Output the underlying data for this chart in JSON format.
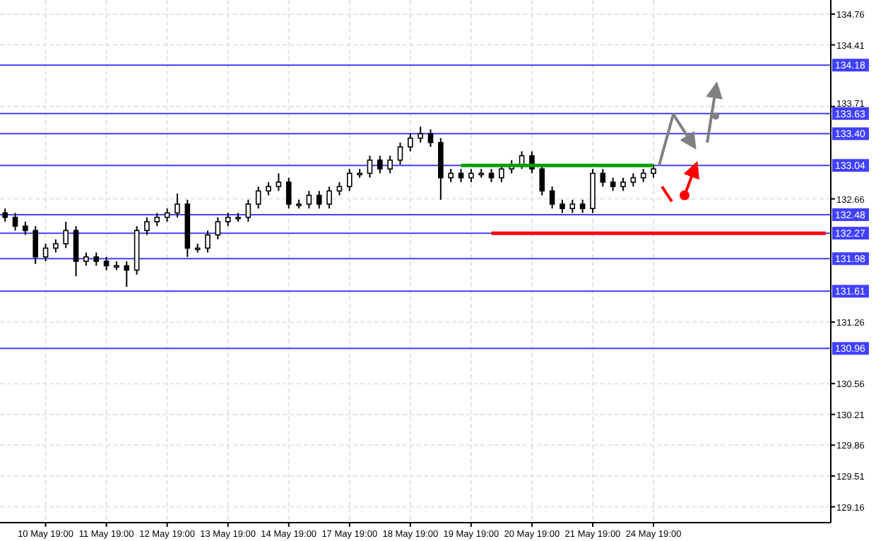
{
  "chart_data": {
    "type": "candlestick",
    "color": "#000000",
    "grid": true,
    "categories": [
      null,
      null,
      null,
      null,
      "10 May 19:00",
      null,
      null,
      null,
      null,
      null,
      "11 May 19:00",
      null,
      null,
      null,
      null,
      null,
      "12 May 19:00",
      null,
      null,
      null,
      null,
      null,
      "13 May 19:00",
      null,
      null,
      null,
      null,
      null,
      "14 May 19:00",
      null,
      null,
      null,
      null,
      null,
      "17 May 19:00",
      null,
      null,
      null,
      null,
      null,
      "18 May 19:00",
      null,
      null,
      null,
      null,
      null,
      "19 May 19:00",
      null,
      null,
      null,
      null,
      null,
      "20 May 19:00",
      null,
      null,
      null,
      null,
      null,
      "21 May 19:00",
      null,
      null,
      null,
      null,
      null,
      "24 May 19:00",
      null,
      null,
      null,
      null,
      null,
      null,
      null,
      null,
      null,
      null,
      null,
      null,
      null,
      null,
      null,
      null,
      null
    ],
    "ohlc": [
      [
        132.5,
        132.55,
        132.4,
        132.45
      ],
      [
        132.45,
        132.5,
        132.3,
        132.35
      ],
      [
        132.35,
        132.4,
        132.25,
        132.3
      ],
      [
        132.3,
        132.35,
        131.92,
        132.0
      ],
      [
        132.0,
        132.15,
        131.95,
        132.1
      ],
      [
        132.1,
        132.2,
        132.05,
        132.15
      ],
      [
        132.15,
        132.4,
        132.1,
        132.3
      ],
      [
        132.3,
        132.35,
        131.78,
        131.95
      ],
      [
        131.95,
        132.05,
        131.9,
        132.0
      ],
      [
        132.0,
        132.05,
        131.9,
        131.95
      ],
      [
        131.95,
        132.0,
        131.85,
        131.9
      ],
      [
        131.9,
        131.95,
        131.85,
        131.9
      ],
      [
        131.9,
        131.95,
        131.66,
        131.85
      ],
      [
        131.85,
        132.35,
        131.8,
        132.3
      ],
      [
        132.3,
        132.45,
        132.25,
        132.4
      ],
      [
        132.4,
        132.5,
        132.35,
        132.45
      ],
      [
        132.45,
        132.55,
        132.4,
        132.5
      ],
      [
        132.5,
        132.72,
        132.45,
        132.6
      ],
      [
        132.6,
        132.65,
        132.0,
        132.1
      ],
      [
        132.1,
        132.15,
        132.05,
        132.1
      ],
      [
        132.1,
        132.3,
        132.05,
        132.25
      ],
      [
        132.25,
        132.45,
        132.2,
        132.4
      ],
      [
        132.4,
        132.5,
        132.35,
        132.45
      ],
      [
        132.45,
        132.5,
        132.4,
        132.45
      ],
      [
        132.45,
        132.65,
        132.4,
        132.6
      ],
      [
        132.6,
        132.8,
        132.55,
        132.75
      ],
      [
        132.75,
        132.85,
        132.7,
        132.8
      ],
      [
        132.8,
        132.95,
        132.75,
        132.85
      ],
      [
        132.85,
        132.9,
        132.55,
        132.6
      ],
      [
        132.6,
        132.65,
        132.55,
        132.6
      ],
      [
        132.6,
        132.75,
        132.55,
        132.7
      ],
      [
        132.7,
        132.75,
        132.55,
        132.6
      ],
      [
        132.6,
        132.8,
        132.55,
        132.75
      ],
      [
        132.75,
        132.85,
        132.7,
        132.8
      ],
      [
        132.8,
        133.0,
        132.75,
        132.95
      ],
      [
        132.95,
        133.0,
        132.9,
        132.95
      ],
      [
        132.95,
        133.15,
        132.9,
        133.1
      ],
      [
        133.1,
        133.15,
        132.95,
        133.0
      ],
      [
        133.0,
        133.15,
        132.95,
        133.1
      ],
      [
        133.1,
        133.3,
        133.05,
        133.25
      ],
      [
        133.25,
        133.4,
        133.2,
        133.35
      ],
      [
        133.35,
        133.48,
        133.3,
        133.4
      ],
      [
        133.4,
        133.45,
        133.25,
        133.3
      ],
      [
        133.3,
        133.35,
        132.65,
        132.9
      ],
      [
        132.9,
        133.0,
        132.85,
        132.95
      ],
      [
        132.95,
        133.0,
        132.85,
        132.9
      ],
      [
        132.9,
        133.0,
        132.85,
        132.95
      ],
      [
        132.95,
        133.0,
        132.9,
        132.95
      ],
      [
        132.95,
        133.0,
        132.85,
        132.9
      ],
      [
        132.9,
        133.05,
        132.85,
        133.0
      ],
      [
        133.0,
        133.1,
        132.95,
        133.05
      ],
      [
        133.05,
        133.2,
        133.0,
        133.15
      ],
      [
        133.15,
        133.2,
        132.95,
        133.0
      ],
      [
        133.0,
        133.05,
        132.7,
        132.75
      ],
      [
        132.75,
        132.8,
        132.55,
        132.6
      ],
      [
        132.6,
        132.65,
        132.5,
        132.55
      ],
      [
        132.55,
        132.65,
        132.5,
        132.6
      ],
      [
        132.6,
        132.65,
        132.5,
        132.55
      ],
      [
        132.55,
        133.0,
        132.5,
        132.95
      ],
      [
        132.95,
        133.0,
        132.8,
        132.85
      ],
      [
        132.85,
        132.9,
        132.75,
        132.8
      ],
      [
        132.8,
        132.9,
        132.75,
        132.85
      ],
      [
        132.85,
        132.95,
        132.8,
        132.9
      ],
      [
        132.9,
        133.0,
        132.85,
        132.95
      ],
      [
        132.95,
        133.05,
        132.9,
        133.0
      ],
      null,
      null,
      null,
      null,
      null,
      null,
      null,
      null,
      null,
      null,
      null,
      null,
      null,
      null,
      null,
      null,
      null
    ],
    "series": [
      {
        "type": "line",
        "color": "#00a000",
        "values": [
          null,
          null,
          null,
          null,
          null,
          null,
          null,
          null,
          null,
          null,
          null,
          null,
          null,
          null,
          null,
          null,
          null,
          null,
          null,
          null,
          null,
          null,
          null,
          null,
          null,
          null,
          null,
          null,
          null,
          null,
          null,
          null,
          null,
          null,
          null,
          null,
          null,
          null,
          null,
          null,
          null,
          null,
          null,
          null,
          null,
          133.04,
          133.04,
          133.04,
          133.04,
          133.04,
          133.04,
          133.04,
          133.04,
          133.04,
          133.04,
          133.04,
          133.04,
          133.04,
          133.04,
          133.04,
          133.04,
          133.04,
          133.04,
          133.04,
          133.04,
          null,
          null,
          null,
          null,
          null,
          null,
          null,
          null,
          null,
          null,
          null,
          null,
          null,
          null,
          null,
          null,
          null
        ]
      },
      {
        "type": "line",
        "color": "#ff0000",
        "values": [
          null,
          null,
          null,
          null,
          null,
          null,
          null,
          null,
          null,
          null,
          null,
          null,
          null,
          null,
          null,
          null,
          null,
          null,
          null,
          null,
          null,
          null,
          null,
          null,
          null,
          null,
          null,
          null,
          null,
          null,
          null,
          null,
          null,
          null,
          null,
          null,
          null,
          null,
          null,
          null,
          null,
          null,
          null,
          null,
          null,
          null,
          null,
          null,
          132.27,
          132.27,
          132.27,
          132.27,
          132.27,
          132.27,
          132.27,
          132.27,
          132.27,
          132.27,
          132.27,
          132.27,
          132.27,
          132.27,
          132.27,
          132.27,
          132.27,
          132.27,
          132.27,
          132.27,
          132.27,
          132.27,
          132.27,
          132.27,
          132.27,
          132.27,
          132.27,
          132.27,
          132.27,
          132.27,
          132.27,
          132.27,
          132.27,
          132.27
        ]
      }
    ],
    "ylim": [
      128.98,
      134.92
    ],
    "yticks": [
      134.76,
      134.41,
      133.71,
      132.66,
      131.26,
      130.56,
      130.21,
      129.86,
      129.51,
      129.16
    ],
    "ref_lines": [
      {
        "axis": "y",
        "value": 134.18,
        "label": "134.18",
        "color": "#4040ff"
      },
      {
        "axis": "y",
        "value": 133.63,
        "label": "133.63",
        "color": "#4040ff"
      },
      {
        "axis": "y",
        "value": 133.4,
        "label": "133.40",
        "color": "#4040ff"
      },
      {
        "axis": "y",
        "value": 133.04,
        "label": "133.04",
        "color": "#4040ff"
      },
      {
        "axis": "y",
        "value": 132.48,
        "label": "132.48",
        "color": "#4040ff"
      },
      {
        "axis": "y",
        "value": 132.27,
        "label": "132.27",
        "color": "#4040ff"
      },
      {
        "axis": "y",
        "value": 131.98,
        "label": "131.98",
        "color": "#4040ff"
      },
      {
        "axis": "y",
        "value": 131.61,
        "label": "131.61",
        "color": "#4040ff"
      },
      {
        "axis": "y",
        "value": 130.96,
        "label": "130.96",
        "color": "#4040ff"
      }
    ]
  }
}
